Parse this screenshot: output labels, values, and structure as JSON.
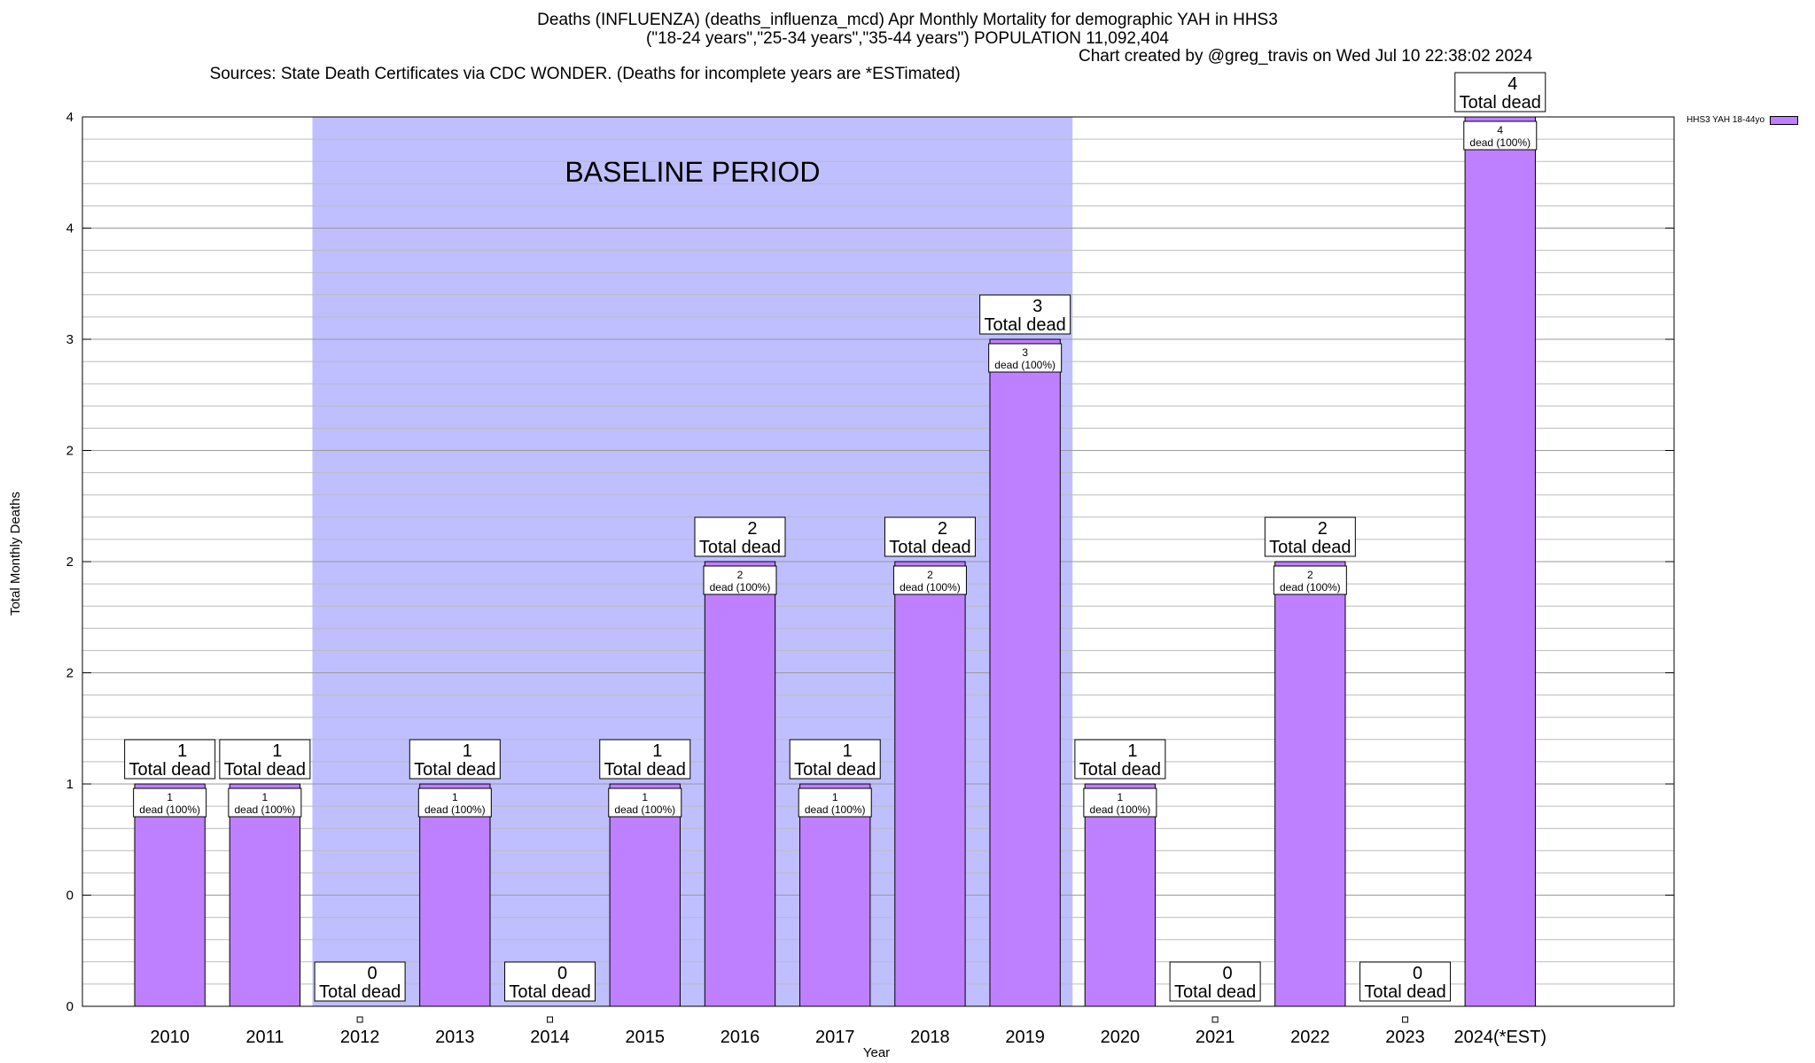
{
  "chart_data": {
    "type": "bar",
    "title": "Deaths (INFLUENZA) (deaths_influenza_mcd) Apr Monthly Mortality for demographic YAH in HHS3",
    "subtitle": "(\"18-24 years\",\"25-34 years\",\"35-44 years\") POPULATION 11,092,404",
    "sources": "Sources: State Death Certificates via CDC WONDER. (Deaths for incomplete years are *ESTimated)",
    "credit": "Chart created by @greg_travis on Wed Jul 10 22:38:02 2024",
    "xlabel": "Year",
    "ylabel": "Total Monthly Deaths",
    "categories": [
      "2010",
      "2011",
      "2012",
      "2013",
      "2014",
      "2015",
      "2016",
      "2017",
      "2018",
      "2019",
      "2020",
      "2021",
      "2022",
      "2023",
      "2024(*EST)"
    ],
    "series": [
      {
        "name": "HHS3 YAH 18-44yo",
        "values": [
          1,
          1,
          0,
          1,
          0,
          1,
          2,
          1,
          2,
          3,
          1,
          0,
          2,
          0,
          4
        ]
      }
    ],
    "ylim": [
      0,
      4
    ],
    "y_tick_labels": [
      "0",
      "0",
      "1",
      "2",
      "2",
      "2",
      "3",
      "4",
      "4"
    ],
    "total_label_suffix": "Total dead",
    "bar_label_suffix": "dead (100%)",
    "baseline_label": "BASELINE PERIOD",
    "baseline_range": [
      "2012",
      "2019"
    ],
    "colors": {
      "bar": "#bf80ff",
      "baseline": "#bfbfff"
    },
    "legend_position": "top-right",
    "grid": true
  }
}
